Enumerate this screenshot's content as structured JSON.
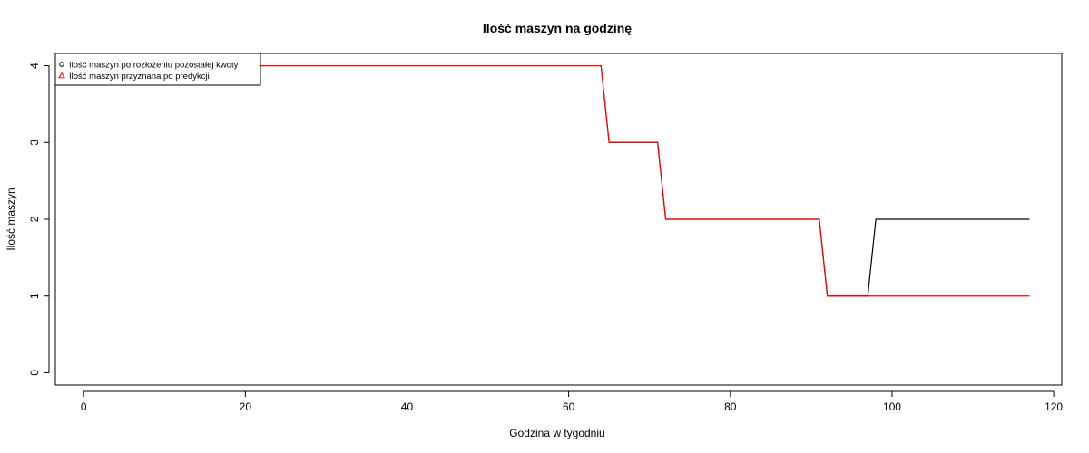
{
  "chart_data": {
    "type": "line",
    "title": "Ilość maszyn na godzinę",
    "xlabel": "Godzina w tygodniu",
    "ylabel": "Ilość maszyn",
    "xlim": [
      -3.5,
      121
    ],
    "ylim": [
      -0.16,
      4.16
    ],
    "xticks": [
      0,
      20,
      40,
      60,
      80,
      100,
      120
    ],
    "yticks": [
      0,
      1,
      2,
      3,
      4
    ],
    "grid": false,
    "legend_position": "top-left",
    "series": [
      {
        "name": "Ilość maszyn po rozłożeniu pozostałej kwoty",
        "color": "#000000",
        "marker": "circle",
        "points": [
          [
            0,
            4
          ],
          [
            64,
            4
          ],
          [
            65,
            3
          ],
          [
            71,
            3
          ],
          [
            72,
            2
          ],
          [
            91,
            2
          ],
          [
            92,
            1
          ],
          [
            97,
            1
          ],
          [
            98,
            2
          ],
          [
            117,
            2
          ]
        ]
      },
      {
        "name": "Ilość maszyn przyznana po predykcji",
        "color": "#ff0000",
        "marker": "triangle",
        "points": [
          [
            0,
            4
          ],
          [
            64,
            4
          ],
          [
            65,
            3
          ],
          [
            71,
            3
          ],
          [
            72,
            2
          ],
          [
            91,
            2
          ],
          [
            92,
            1
          ],
          [
            117,
            1
          ]
        ]
      }
    ]
  }
}
